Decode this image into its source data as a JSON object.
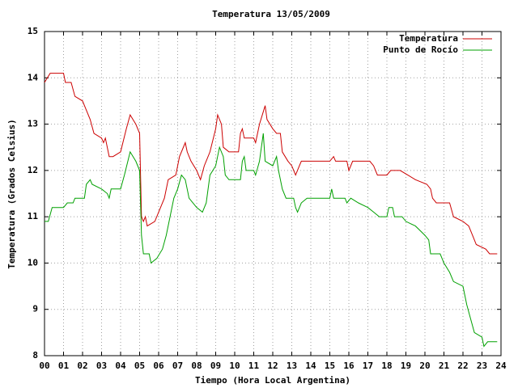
{
  "chart_data": {
    "type": "line",
    "title": "Temperatura 13/05/2009",
    "x_label": "Tiempo (Hora Local Argentina)",
    "y_label": "Temperatura (Grados Celsius)",
    "xlim": [
      0,
      24
    ],
    "ylim": [
      8,
      15
    ],
    "xticks": [
      {
        "value": 0,
        "label": "00"
      },
      {
        "value": 1,
        "label": "01"
      },
      {
        "value": 2,
        "label": "02"
      },
      {
        "value": 3,
        "label": "03"
      },
      {
        "value": 4,
        "label": "04"
      },
      {
        "value": 5,
        "label": "05"
      },
      {
        "value": 6,
        "label": "06"
      },
      {
        "value": 7,
        "label": "07"
      },
      {
        "value": 8,
        "label": "08"
      },
      {
        "value": 9,
        "label": "09"
      },
      10,
      11,
      12,
      13,
      14,
      15,
      16,
      17,
      18,
      19,
      20,
      21,
      22,
      23,
      24
    ],
    "yticks": [
      8,
      9,
      10,
      11,
      12,
      13,
      14,
      15
    ],
    "grid": true,
    "legend": "top-right",
    "series": [
      {
        "name": "Temperatura",
        "color": "#cc0000",
        "x": [
          0,
          0.3,
          1.0,
          1.1,
          1.4,
          1.6,
          2.0,
          2.4,
          2.6,
          3.0,
          3.1,
          3.2,
          3.4,
          3.6,
          4.0,
          4.3,
          4.5,
          4.8,
          5.0,
          5.1,
          5.2,
          5.3,
          5.4,
          5.8,
          6.0,
          6.3,
          6.5,
          6.9,
          7.1,
          7.4,
          7.5,
          7.7,
          8.0,
          8.2,
          8.4,
          8.7,
          9.0,
          9.1,
          9.3,
          9.4,
          9.7,
          10.2,
          10.3,
          10.4,
          10.5,
          11.0,
          11.1,
          11.3,
          11.6,
          11.7,
          12.0,
          12.2,
          12.4,
          12.5,
          12.8,
          13.0,
          13.2,
          13.4,
          13.5,
          15.0,
          15.2,
          15.3,
          15.9,
          16.0,
          16.2,
          17.1,
          17.3,
          17.5,
          18.0,
          18.2,
          18.7,
          19.1,
          19.5,
          20.1,
          20.3,
          20.4,
          20.6,
          21.3,
          21.5,
          22.0,
          22.3,
          22.5,
          22.7,
          23.2,
          23.4,
          23.8
        ],
        "values": [
          13.9,
          14.1,
          14.1,
          13.9,
          13.9,
          13.6,
          13.5,
          13.1,
          12.8,
          12.7,
          12.6,
          12.7,
          12.3,
          12.3,
          12.4,
          12.9,
          13.2,
          13.0,
          12.8,
          11.0,
          10.9,
          11.0,
          10.8,
          10.9,
          11.1,
          11.4,
          11.8,
          11.9,
          12.3,
          12.6,
          12.4,
          12.2,
          12.0,
          11.8,
          12.1,
          12.4,
          12.9,
          13.2,
          13.0,
          12.5,
          12.4,
          12.4,
          12.8,
          12.9,
          12.7,
          12.7,
          12.6,
          13.0,
          13.4,
          13.1,
          12.9,
          12.8,
          12.8,
          12.4,
          12.2,
          12.1,
          11.9,
          12.1,
          12.2,
          12.2,
          12.3,
          12.2,
          12.2,
          12.0,
          12.2,
          12.2,
          12.1,
          11.9,
          11.9,
          12.0,
          12.0,
          11.9,
          11.8,
          11.7,
          11.6,
          11.4,
          11.3,
          11.3,
          11.0,
          10.9,
          10.8,
          10.6,
          10.4,
          10.3,
          10.2,
          10.2
        ]
      },
      {
        "name": "Punto de Rocío",
        "color": "#00a000",
        "x": [
          0,
          0.2,
          0.4,
          1.0,
          1.2,
          1.5,
          1.6,
          2.1,
          2.2,
          2.4,
          2.5,
          3.0,
          3.3,
          3.4,
          3.5,
          4.0,
          4.2,
          4.5,
          4.8,
          5.0,
          5.1,
          5.2,
          5.5,
          5.6,
          5.9,
          6.2,
          6.4,
          6.6,
          6.8,
          7.0,
          7.2,
          7.4,
          7.6,
          8.0,
          8.3,
          8.5,
          8.7,
          9.0,
          9.2,
          9.4,
          9.5,
          9.7,
          10.3,
          10.4,
          10.5,
          10.6,
          11.0,
          11.1,
          11.3,
          11.5,
          11.6,
          12.0,
          12.2,
          12.3,
          12.5,
          12.7,
          13.1,
          13.2,
          13.3,
          13.5,
          13.8,
          15.0,
          15.1,
          15.2,
          15.8,
          15.9,
          16.1,
          16.5,
          17.0,
          17.3,
          17.6,
          18.0,
          18.1,
          18.3,
          18.4,
          18.8,
          19.0,
          19.5,
          20.0,
          20.2,
          20.3,
          20.8,
          21.0,
          21.3,
          21.5,
          22.0,
          22.2,
          22.4,
          22.6,
          23.0,
          23.1,
          23.3,
          23.8
        ],
        "values": [
          10.9,
          10.9,
          11.2,
          11.2,
          11.3,
          11.3,
          11.4,
          11.4,
          11.7,
          11.8,
          11.7,
          11.6,
          11.5,
          11.4,
          11.6,
          11.6,
          11.9,
          12.4,
          12.2,
          12.0,
          10.6,
          10.2,
          10.2,
          10.0,
          10.1,
          10.3,
          10.6,
          11.0,
          11.4,
          11.6,
          11.9,
          11.8,
          11.4,
          11.2,
          11.1,
          11.3,
          11.9,
          12.1,
          12.5,
          12.3,
          11.9,
          11.8,
          11.8,
          12.2,
          12.3,
          12.0,
          12.0,
          11.9,
          12.2,
          12.8,
          12.2,
          12.1,
          12.3,
          12.0,
          11.6,
          11.4,
          11.4,
          11.2,
          11.1,
          11.3,
          11.4,
          11.4,
          11.6,
          11.4,
          11.4,
          11.3,
          11.4,
          11.3,
          11.2,
          11.1,
          11.0,
          11.0,
          11.2,
          11.2,
          11.0,
          11.0,
          10.9,
          10.8,
          10.6,
          10.5,
          10.2,
          10.2,
          10.0,
          9.8,
          9.6,
          9.5,
          9.1,
          8.8,
          8.5,
          8.4,
          8.2,
          8.3,
          8.3
        ]
      }
    ]
  }
}
